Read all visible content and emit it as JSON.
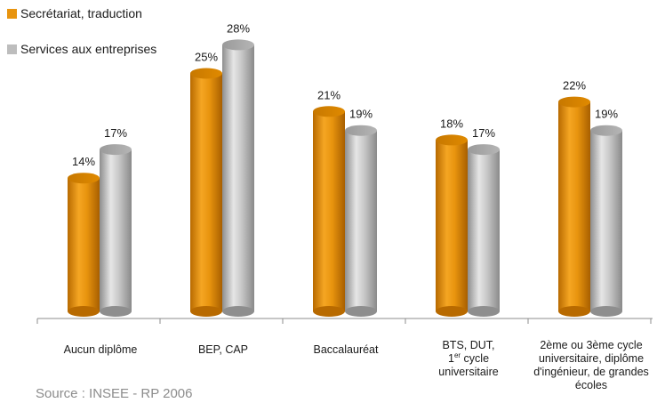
{
  "chart_data": {
    "type": "bar",
    "categories": [
      "Aucun diplôme",
      "BEP, CAP",
      "Baccalauréat",
      "BTS, DUT, 1er cycle universitaire",
      "2ème ou 3ème cycle universitaire, diplôme d'ingénieur, de grandes écoles"
    ],
    "series": [
      {
        "name": "Secrétariat, traduction",
        "color": "#E8940E",
        "values": [
          14,
          25,
          21,
          18,
          22
        ],
        "labels": [
          "14%",
          "25%",
          "21%",
          "18%",
          "22%"
        ]
      },
      {
        "name": "Services aux entreprises",
        "color": "#BDBDBD",
        "values": [
          17,
          28,
          19,
          17,
          19
        ],
        "labels": [
          "17%",
          "28%",
          "19%",
          "17%",
          "19%"
        ]
      }
    ],
    "ylim": [
      0,
      30
    ],
    "grid": false,
    "legend": "top-left"
  },
  "category_label_lines": [
    [
      "Aucun diplôme"
    ],
    [
      "BEP, CAP"
    ],
    [
      "Baccalauréat"
    ],
    [
      "BTS, DUT,",
      "1",
      "er",
      " cycle",
      "universitaire"
    ],
    [
      "2ème ou 3ème cycle",
      "universitaire, diplôme",
      "d'ingénieur, de grandes",
      "écoles"
    ]
  ],
  "source": "Source : INSEE - RP 2006"
}
